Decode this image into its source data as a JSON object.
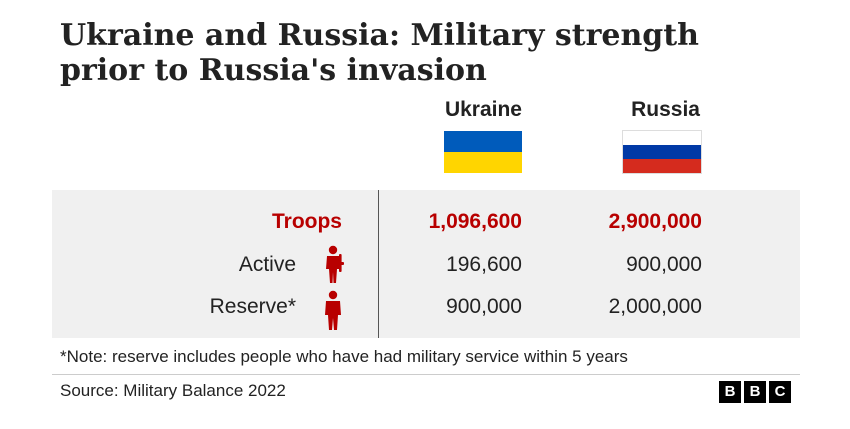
{
  "title": "Ukraine and Russia: Military strength prior to Russia's invasion",
  "columns": [
    "Ukraine",
    "Russia"
  ],
  "flags": {
    "ukraine": [
      "#005bbb",
      "#ffd500"
    ],
    "russia": [
      "#ffffff",
      "#0039a6",
      "#d52b1e"
    ]
  },
  "colors": {
    "accent": "#b80000",
    "panel": "#f0f0f0",
    "text": "#222222"
  },
  "chart_data": {
    "type": "table",
    "title": "Ukraine and Russia: Military strength prior to Russia's invasion",
    "columns": [
      "Ukraine",
      "Russia"
    ],
    "rows": [
      {
        "label": "Troops",
        "icon": null,
        "values": [
          "1,096,600",
          "2,900,000"
        ],
        "numeric": [
          1096600,
          2900000
        ]
      },
      {
        "label": "Active",
        "icon": "armed-soldier-icon",
        "values": [
          "196,600",
          "900,000"
        ],
        "numeric": [
          196600,
          900000
        ]
      },
      {
        "label": "Reserve*",
        "icon": "person-icon",
        "values": [
          "900,000",
          "2,000,000"
        ],
        "numeric": [
          900000,
          2000000
        ]
      }
    ]
  },
  "note": "*Note: reserve includes people who have had military service within 5 years",
  "source": "Source: Military Balance 2022",
  "logo": [
    "B",
    "B",
    "C"
  ]
}
